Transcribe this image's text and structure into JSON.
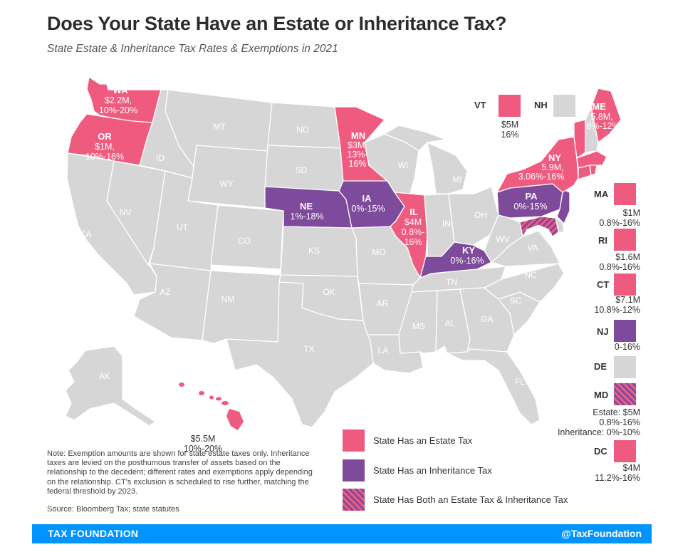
{
  "title": "Does Your State Have an Estate or Inheritance Tax?",
  "subtitle": "State Estate & Inheritance Tax Rates & Exemptions in 2021",
  "colors": {
    "estate": "#ef5b7f",
    "inheritance": "#7e4a9b",
    "none": "#d6d6d6",
    "footer": "#0094ff"
  },
  "map_labels": {
    "WA": {
      "abbr": "WA",
      "exemption": "$2.2M,",
      "rate": "10%-20%"
    },
    "OR": {
      "abbr": "OR",
      "exemption": "$1M,",
      "rate": "10%-16%"
    },
    "MN": {
      "abbr": "MN",
      "exemption": "$3M,",
      "rate": "13%-",
      "rate2": "16%"
    },
    "NE": {
      "abbr": "NE",
      "rate": "1%-18%"
    },
    "IA": {
      "abbr": "IA",
      "rate": "0%-15%"
    },
    "IL": {
      "abbr": "IL",
      "exemption": "$4M",
      "rate": "0.8%-",
      "rate2": "16%"
    },
    "KY": {
      "abbr": "KY",
      "rate": "0%-16%"
    },
    "PA": {
      "abbr": "PA",
      "rate": "0%-15%"
    },
    "NY": {
      "abbr": "NY",
      "exemption": "5.9M,",
      "rate": "3.06%-16%"
    },
    "ME": {
      "abbr": "ME",
      "exemption": "5.8M,",
      "rate": "8%-12%"
    },
    "HI": {
      "exemption": "$5.5M",
      "rate": "10%-20%"
    },
    "gray": [
      "MT",
      "ND",
      "ID",
      "SD",
      "WY",
      "WI",
      "MI",
      "NV",
      "UT",
      "CO",
      "CA",
      "KS",
      "MO",
      "IN",
      "OH",
      "WV",
      "VA",
      "AZ",
      "NM",
      "OK",
      "AR",
      "TN",
      "NC",
      "SC",
      "MS",
      "AL",
      "GA",
      "TX",
      "LA",
      "FL",
      "AK"
    ]
  },
  "side_states": {
    "VT": {
      "abbr": "VT",
      "exemption": "$5M",
      "rate": "16%"
    },
    "NH": {
      "abbr": "NH"
    },
    "MA": {
      "abbr": "MA",
      "exemption": "$1M",
      "rate": "0.8%-16%"
    },
    "RI": {
      "abbr": "RI",
      "exemption": "$1.6M",
      "rate": "0.8%-16%"
    },
    "CT": {
      "abbr": "CT",
      "exemption": "$7.1M",
      "rate": "10.8%-12%"
    },
    "NJ": {
      "abbr": "NJ",
      "rate": "0-16%"
    },
    "DE": {
      "abbr": "DE"
    },
    "MD": {
      "abbr": "MD",
      "line1": "Estate: $5M",
      "line2": "0.8%-16%",
      "line3": "Inheritance: 0%-10%"
    },
    "DC": {
      "abbr": "DC",
      "exemption": "$4M",
      "rate": "11.2%-16%"
    }
  },
  "legend": {
    "estate": "State Has an Estate Tax",
    "inheritance": "State Has an Inheritance Tax",
    "both": "State Has Both an Estate Tax & Inheritance Tax"
  },
  "note": "Note: Exemption amounts are shown for state estate taxes only. Inheritance taxes are levied on the posthumous transfer of assets based on the relationship to the decedent; different rates and exemptions apply depending on the relationship. CT's exclusion is scheduled to rise further, matching the federal threshold by 2023.",
  "source": "Source: Bloomberg Tax; state statutes",
  "footer": {
    "left": "TAX FOUNDATION",
    "right": "@TaxFoundation"
  }
}
